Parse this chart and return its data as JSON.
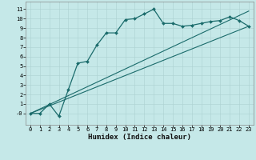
{
  "title": "",
  "xlabel": "Humidex (Indice chaleur)",
  "bg_color": "#c5e8e8",
  "line_color": "#1a6b6b",
  "xlim": [
    -0.5,
    23.5
  ],
  "ylim": [
    -1.2,
    11.8
  ],
  "xticks": [
    0,
    1,
    2,
    3,
    4,
    5,
    6,
    7,
    8,
    9,
    10,
    11,
    12,
    13,
    14,
    15,
    16,
    17,
    18,
    19,
    20,
    21,
    22,
    23
  ],
  "yticks": [
    0,
    1,
    2,
    3,
    4,
    5,
    6,
    7,
    8,
    9,
    10,
    11
  ],
  "curve_x": [
    0,
    1,
    2,
    3,
    4,
    5,
    6,
    7,
    8,
    9,
    10,
    11,
    12,
    13,
    14,
    15,
    16,
    17,
    18,
    19,
    20,
    21,
    22,
    23
  ],
  "curve_y": [
    0,
    0,
    1,
    -0.3,
    2.5,
    5.3,
    5.5,
    7.2,
    8.5,
    8.5,
    9.9,
    10.0,
    10.5,
    11.0,
    9.5,
    9.5,
    9.2,
    9.3,
    9.5,
    9.7,
    9.8,
    10.2,
    9.8,
    9.2
  ],
  "line1_x": [
    0,
    23
  ],
  "line1_y": [
    0,
    9.2
  ],
  "line2_x": [
    0,
    23
  ],
  "line2_y": [
    0,
    10.8
  ],
  "grid_color": "#b0d4d4",
  "xlabel_fontsize": 6.5,
  "tick_fontsize": 5
}
